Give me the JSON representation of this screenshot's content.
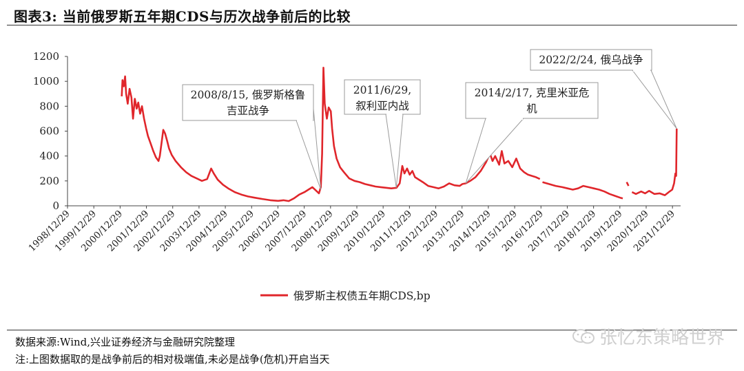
{
  "title": "图表3:   当前俄罗斯五年期CDS与历次战争前后的比较",
  "footer": {
    "source": "数据来源:Wind,兴业证券经济与金融研究院整理",
    "note": "注:上图数据取的是战争前后的相对极端值,未必是战争(危机)开启当天"
  },
  "watermark": {
    "text": "张忆东策略世界",
    "icon": "wechat-icon"
  },
  "colors": {
    "series": "#e0262b",
    "axis": "#444444",
    "callout_border": "#9a9a9a"
  },
  "chart_data": {
    "type": "line",
    "title": "",
    "xlabel": "",
    "ylabel": "",
    "ylim": [
      0,
      1200
    ],
    "yticks": [
      0,
      200,
      400,
      600,
      800,
      1000,
      1200
    ],
    "xlim": [
      1998.99,
      2022.3
    ],
    "xticks": [
      "1998/12/29",
      "1999/12/29",
      "2000/12/29",
      "2001/12/29",
      "2002/12/29",
      "2003/12/29",
      "2004/12/29",
      "2005/12/29",
      "2006/12/29",
      "2007/12/29",
      "2008/12/29",
      "2009/12/29",
      "2010/12/29",
      "2011/12/29",
      "2012/12/29",
      "2013/12/29",
      "2014/12/29",
      "2015/12/29",
      "2016/12/29",
      "2017/12/29",
      "2018/12/29",
      "2019/12/29",
      "2020/12/29",
      "2021/12/29"
    ],
    "xtick_years": [
      1998.99,
      1999.99,
      2000.99,
      2001.99,
      2002.99,
      2003.99,
      2004.99,
      2005.99,
      2006.99,
      2007.99,
      2008.99,
      2009.99,
      2010.99,
      2011.99,
      2012.99,
      2013.99,
      2014.99,
      2015.99,
      2016.99,
      2017.99,
      2018.99,
      2019.99,
      2020.99,
      2021.99
    ],
    "grid": false,
    "legend_position": "bottom-center",
    "series": [
      {
        "name": "俄罗斯主权债五年期CDS,bp",
        "segments": [
          [
            [
              2001.05,
              880
            ],
            [
              2001.08,
              1010
            ],
            [
              2001.13,
              960
            ],
            [
              2001.18,
              1040
            ],
            [
              2001.22,
              900
            ],
            [
              2001.28,
              820
            ],
            [
              2001.35,
              940
            ],
            [
              2001.42,
              870
            ],
            [
              2001.48,
              700
            ],
            [
              2001.55,
              860
            ],
            [
              2001.62,
              780
            ],
            [
              2001.68,
              830
            ],
            [
              2001.75,
              740
            ],
            [
              2001.82,
              800
            ],
            [
              2001.9,
              700
            ],
            [
              2001.98,
              620
            ],
            [
              2002.05,
              560
            ],
            [
              2002.15,
              500
            ],
            [
              2002.25,
              440
            ],
            [
              2002.35,
              390
            ],
            [
              2002.45,
              360
            ],
            [
              2002.5,
              400
            ],
            [
              2002.58,
              530
            ],
            [
              2002.63,
              610
            ],
            [
              2002.7,
              580
            ],
            [
              2002.78,
              520
            ],
            [
              2002.85,
              460
            ],
            [
              2002.95,
              410
            ],
            [
              2003.1,
              360
            ],
            [
              2003.3,
              310
            ],
            [
              2003.5,
              270
            ],
            [
              2003.7,
              240
            ],
            [
              2003.9,
              220
            ],
            [
              2004.1,
              200
            ],
            [
              2004.3,
              215
            ],
            [
              2004.45,
              300
            ],
            [
              2004.55,
              260
            ],
            [
              2004.7,
              210
            ],
            [
              2004.9,
              170
            ],
            [
              2005.1,
              140
            ],
            [
              2005.35,
              110
            ],
            [
              2005.6,
              90
            ],
            [
              2005.85,
              75
            ],
            [
              2006.1,
              65
            ],
            [
              2006.4,
              55
            ],
            [
              2006.7,
              45
            ],
            [
              2007.0,
              40
            ],
            [
              2007.2,
              45
            ],
            [
              2007.4,
              38
            ],
            [
              2007.6,
              60
            ],
            [
              2007.8,
              90
            ],
            [
              2008.0,
              110
            ],
            [
              2008.15,
              130
            ],
            [
              2008.3,
              150
            ],
            [
              2008.45,
              120
            ],
            [
              2008.55,
              100
            ],
            [
              2008.62,
              150
            ],
            [
              2008.67,
              420
            ],
            [
              2008.72,
              1110
            ],
            [
              2008.77,
              820
            ],
            [
              2008.85,
              700
            ],
            [
              2008.92,
              790
            ],
            [
              2009.0,
              760
            ],
            [
              2009.05,
              620
            ],
            [
              2009.12,
              480
            ],
            [
              2009.22,
              380
            ],
            [
              2009.35,
              310
            ],
            [
              2009.5,
              270
            ],
            [
              2009.7,
              220
            ],
            [
              2009.9,
              200
            ],
            [
              2010.1,
              190
            ],
            [
              2010.3,
              175
            ],
            [
              2010.5,
              165
            ],
            [
              2010.7,
              155
            ],
            [
              2010.9,
              150
            ],
            [
              2011.1,
              145
            ],
            [
              2011.3,
              140
            ],
            [
              2011.5,
              145
            ],
            [
              2011.62,
              180
            ],
            [
              2011.72,
              320
            ],
            [
              2011.8,
              260
            ],
            [
              2011.9,
              300
            ],
            [
              2012.0,
              250
            ],
            [
              2012.1,
              280
            ],
            [
              2012.2,
              230
            ],
            [
              2012.35,
              210
            ],
            [
              2012.5,
              190
            ],
            [
              2012.7,
              160
            ],
            [
              2012.9,
              150
            ],
            [
              2013.1,
              140
            ],
            [
              2013.3,
              155
            ],
            [
              2013.5,
              180
            ],
            [
              2013.7,
              165
            ],
            [
              2013.9,
              160
            ],
            [
              2014.0,
              175
            ],
            [
              2014.13,
              180
            ],
            [
              2014.3,
              200
            ],
            [
              2014.5,
              230
            ],
            [
              2014.7,
              280
            ],
            [
              2014.9,
              350
            ],
            [
              2015.05,
              420
            ],
            [
              2015.15,
              360
            ],
            [
              2015.25,
              400
            ],
            [
              2015.4,
              330
            ],
            [
              2015.5,
              440
            ],
            [
              2015.6,
              340
            ],
            [
              2015.75,
              360
            ],
            [
              2015.9,
              310
            ],
            [
              2016.05,
              380
            ],
            [
              2016.2,
              300
            ],
            [
              2016.35,
              270
            ],
            [
              2016.5,
              250
            ],
            [
              2016.65,
              240
            ],
            [
              2016.8,
              230
            ],
            [
              2016.95,
              215
            ]
          ],
          [
            [
              2017.05,
              190
            ],
            [
              2017.3,
              175
            ],
            [
              2017.55,
              160
            ],
            [
              2017.8,
              150
            ],
            [
              2018.0,
              140
            ],
            [
              2018.2,
              130
            ],
            [
              2018.4,
              140
            ],
            [
              2018.6,
              160
            ],
            [
              2018.8,
              150
            ],
            [
              2019.0,
              140
            ],
            [
              2019.2,
              130
            ],
            [
              2019.4,
              115
            ],
            [
              2019.6,
              95
            ],
            [
              2019.8,
              80
            ],
            [
              2020.0,
              65
            ],
            [
              2020.1,
              60
            ]
          ],
          [
            [
              2020.25,
              190
            ],
            [
              2020.32,
              160
            ]
          ],
          [
            [
              2020.45,
              110
            ],
            [
              2020.6,
              95
            ],
            [
              2020.8,
              115
            ],
            [
              2020.95,
              100
            ],
            [
              2021.1,
              120
            ],
            [
              2021.3,
              95
            ],
            [
              2021.5,
              100
            ],
            [
              2021.7,
              85
            ],
            [
              2021.85,
              110
            ],
            [
              2021.98,
              130
            ],
            [
              2022.05,
              180
            ],
            [
              2022.1,
              260
            ],
            [
              2022.13,
              240
            ],
            [
              2022.15,
              620
            ]
          ]
        ]
      }
    ],
    "annotations": [
      {
        "text_lines": [
          "2008/8/15, 俄罗斯格鲁",
          "吉亚战争"
        ],
        "target": [
          2008.62,
          130
        ]
      },
      {
        "text_lines": [
          "2011/6/29,",
          "叙利亚内战"
        ],
        "target": [
          2011.49,
          145
        ]
      },
      {
        "text_lines": [
          "2014/2/17, 克里米亚危",
          "机"
        ],
        "target": [
          2014.13,
          180
        ]
      },
      {
        "text_lines": [
          "2022/2/24, 俄乌战争"
        ],
        "target": [
          2022.15,
          620
        ]
      }
    ]
  }
}
